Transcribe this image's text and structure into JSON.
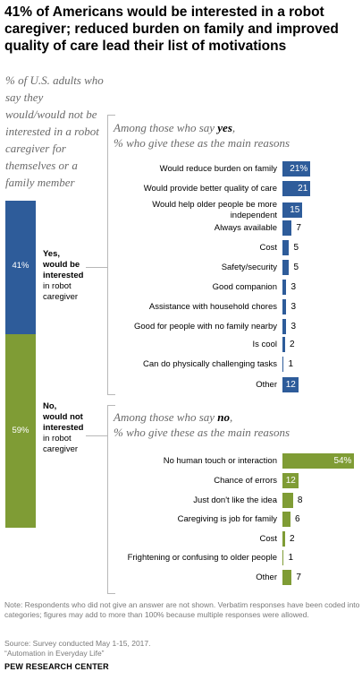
{
  "title": "41% of Americans would be interested in a robot caregiver; reduced burden on family and improved quality of care lead their list of motivations",
  "subhead": "% of U.S. adults who say they would/would not be interested in a robot caregiver for themselves or a family member",
  "colors": {
    "yes": "#2e5c9a",
    "no": "#7f9c35",
    "bracket": "#b8b8b8"
  },
  "stack": {
    "yes": {
      "value": 41,
      "label": "41%",
      "bold1": "Yes,",
      "bold2": "would be",
      "bold3": "interested",
      "rest1": "in robot",
      "rest2": "caregiver"
    },
    "no": {
      "value": 59,
      "label": "59%",
      "bold1": "No,",
      "bold2": "would not",
      "bold3": "interested",
      "rest1": "in robot",
      "rest2": "caregiver"
    }
  },
  "yes_section": {
    "title_pre": "Among those who say ",
    "title_bold": "yes",
    "title_post": ",",
    "title_line2": "% who give these as the main reasons"
  },
  "no_section": {
    "title_pre": "Among those who say ",
    "title_bold": "no",
    "title_post": ",",
    "title_line2": "% who give these as the main reasons"
  },
  "chart_data": [
    {
      "type": "bar",
      "title": "Among those who say yes, % who give these as the main reasons",
      "categories": [
        "Would reduce burden on family",
        "Would provide better quality of care",
        "Would help older people be more independent",
        "Always available",
        "Cost",
        "Safety/security",
        "Good companion",
        "Assistance with household chores",
        "Good for people with no family nearby",
        "Is cool",
        "Can do physically challenging tasks",
        "Other"
      ],
      "values": [
        21,
        21,
        15,
        7,
        5,
        5,
        3,
        3,
        3,
        2,
        1,
        12
      ],
      "value_labels": [
        "21%",
        "21",
        "15",
        "7",
        "5",
        "5",
        "3",
        "3",
        "3",
        "2",
        "1",
        "12"
      ]
    },
    {
      "type": "bar",
      "title": "Among those who say no, % who give these as the main reasons",
      "categories": [
        "No human touch or interaction",
        "Chance of errors",
        "Just don't like the idea",
        "Caregiving is job for family",
        "Cost",
        "Frightening or confusing to older people",
        "Other"
      ],
      "values": [
        54,
        12,
        8,
        6,
        2,
        1,
        7
      ],
      "value_labels": [
        "54%",
        "12",
        "8",
        "6",
        "2",
        "1",
        "7"
      ]
    }
  ],
  "note": "Note: Respondents who did not give an answer are not shown. Verbatim responses have been coded into categories; figures may add to more than 100% because multiple responses were allowed.",
  "source_line1": "Source: Survey conducted May 1-15, 2017.",
  "source_line2": "“Automation in Everyday Life”",
  "footer": "PEW RESEARCH CENTER"
}
